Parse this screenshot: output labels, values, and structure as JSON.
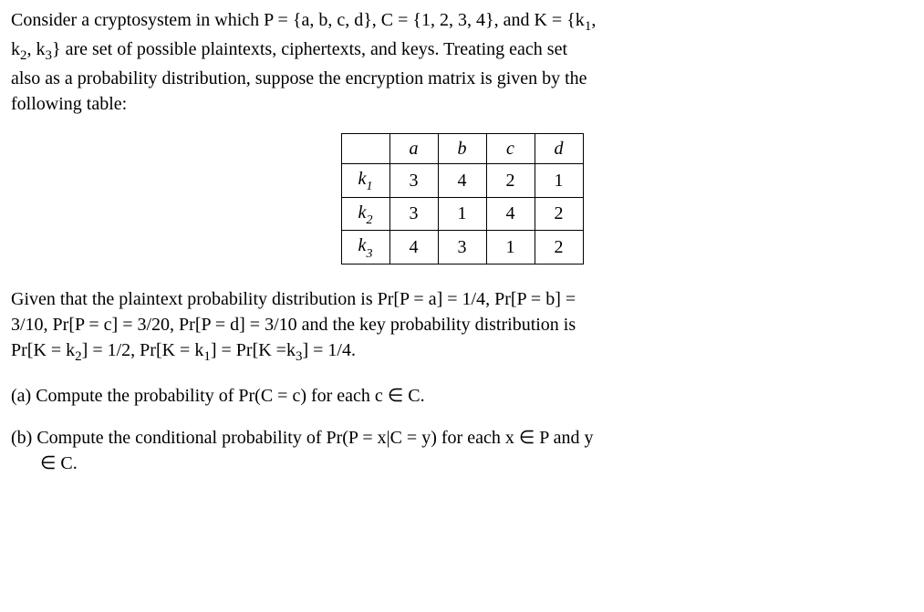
{
  "para1_line1": "Consider a cryptosystem in which P = {a, b, c, d}, C = {1, 2, 3, 4}, and K = {k",
  "para1_k1sub": "1",
  "para1_line1_end": ",",
  "para1_line2_start": "k",
  "para1_k2sub": "2",
  "para1_line2_mid": ", k",
  "para1_k3sub": "3",
  "para1_line2_end": "} are set of possible plaintexts, ciphertexts, and keys. Treating each set",
  "para1_line3": "also as a probability distribution, suppose the encryption matrix is given by the",
  "para1_line4": "following table:",
  "table": {
    "columns": [
      "a",
      "b",
      "c",
      "d"
    ],
    "rows": [
      {
        "key": "k",
        "sub": "1",
        "cells": [
          "3",
          "4",
          "2",
          "1"
        ]
      },
      {
        "key": "k",
        "sub": "2",
        "cells": [
          "3",
          "1",
          "4",
          "2"
        ]
      },
      {
        "key": "k",
        "sub": "3",
        "cells": [
          "4",
          "3",
          "1",
          "2"
        ]
      }
    ],
    "border_color": "#000000",
    "cell_padding": "2px 12px",
    "header_style": "italic"
  },
  "para2_line1": "Given that the plaintext probability distribution is Pr[P = a] = 1/4, Pr[P = b] =",
  "para2_line2": "3/10, Pr[P = c] = 3/20, Pr[P = d] = 3/10 and the key probability distribution is",
  "para2_line3_a": "Pr[K = k",
  "para2_l3_s1": "2",
  "para2_line3_b": "] = 1/2, Pr[K = k",
  "para2_l3_s2": "1",
  "para2_line3_c": "] = Pr[K =k",
  "para2_l3_s3": "3",
  "para2_line3_d": "] = 1/4.",
  "qa_label": "(a) Compute the probability of Pr(C = c) for each c ",
  "qa_in": "∈",
  "qa_end": " C.",
  "qb_line1_a": "(b) Compute the conditional probability of Pr(P = x|C = y) for each x ",
  "qb_in1": "∈",
  "qb_line1_b": " P and y",
  "qb_line2_a": "",
  "qb_in2": "∈",
  "qb_line2_b": " C."
}
